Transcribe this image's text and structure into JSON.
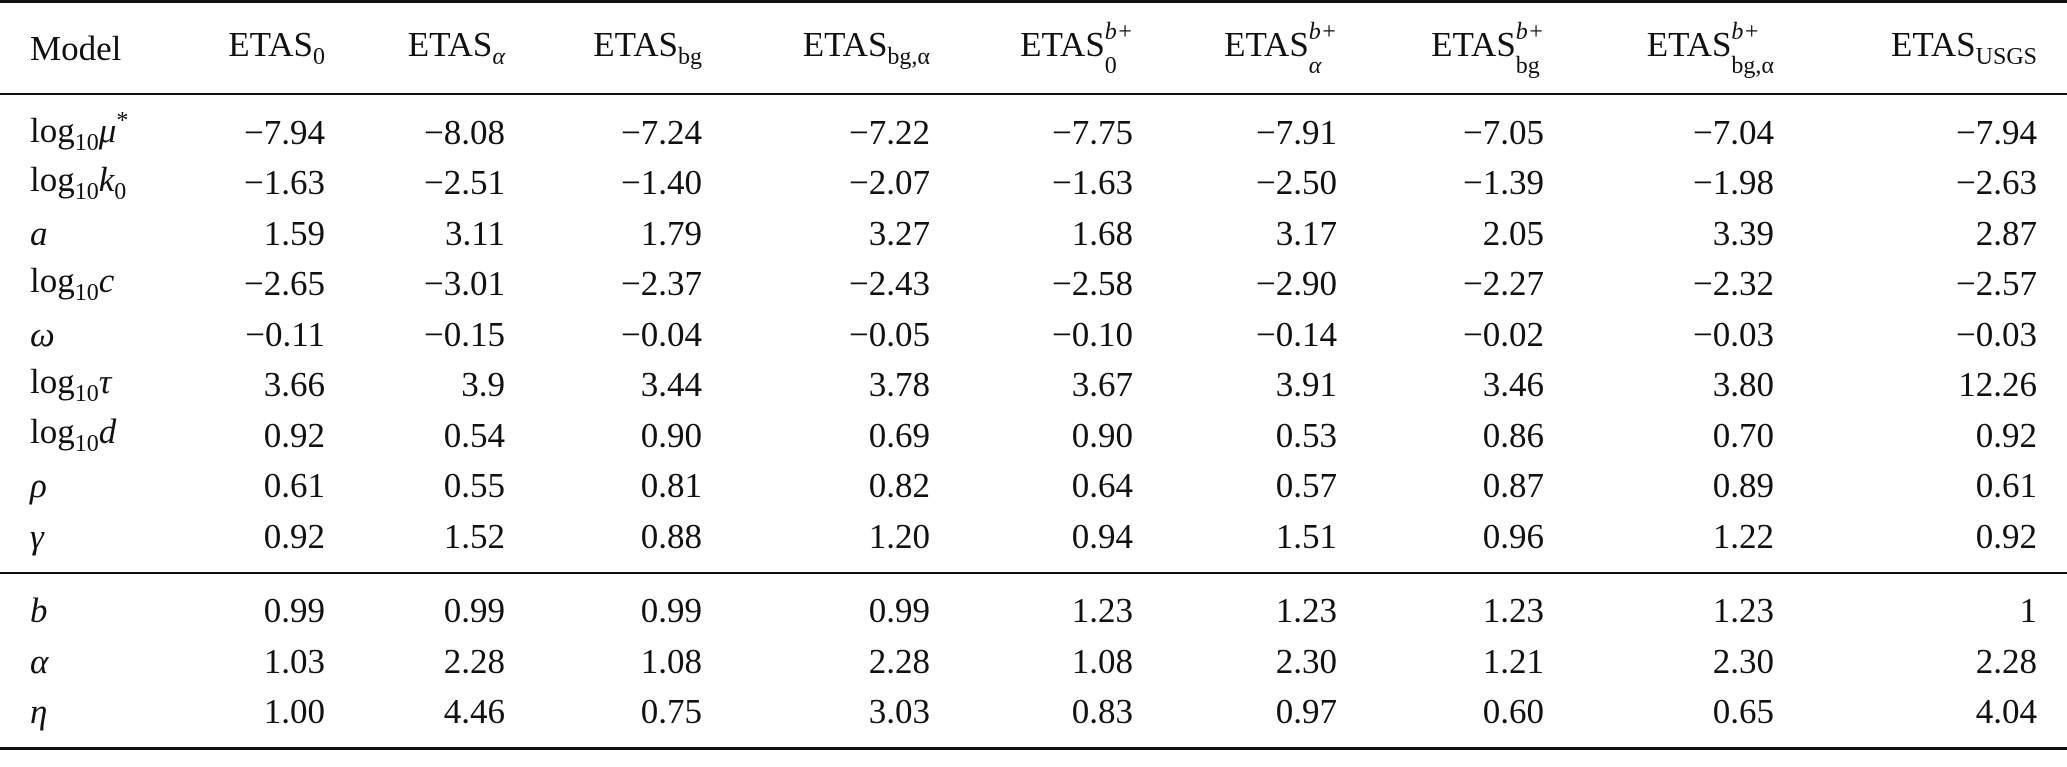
{
  "table": {
    "corner_label": "Model",
    "columns": [
      {
        "base": "ETAS",
        "sub": "0",
        "sup": ""
      },
      {
        "base": "ETAS",
        "sub": "α",
        "sup": ""
      },
      {
        "base": "ETAS",
        "sub": "bg",
        "sup": ""
      },
      {
        "base": "ETAS",
        "sub": "bg,α",
        "sup": ""
      },
      {
        "base": "ETAS",
        "sub": "0",
        "sup": "b+"
      },
      {
        "base": "ETAS",
        "sub": "α",
        "sup": "b+"
      },
      {
        "base": "ETAS",
        "sub": "bg",
        "sup": "b+"
      },
      {
        "base": "ETAS",
        "sub": "bg,α",
        "sup": "b+"
      },
      {
        "base": "ETAS",
        "sub": "USGS",
        "sup": ""
      }
    ],
    "rows": [
      {
        "label_pre": "log",
        "label_sub": "10",
        "label_var": "μ",
        "label_sup": "*",
        "values": [
          "−7.94",
          "−8.08",
          "−7.24",
          "−7.22",
          "−7.75",
          "−7.91",
          "−7.05",
          "−7.04",
          "−7.94"
        ]
      },
      {
        "label_pre": "log",
        "label_sub": "10",
        "label_var": "k",
        "label_var_sub": "0",
        "values": [
          "−1.63",
          "−2.51",
          "−1.40",
          "−2.07",
          "−1.63",
          "−2.50",
          "−1.39",
          "−1.98",
          "−2.63"
        ]
      },
      {
        "label_var": "a",
        "values": [
          "1.59",
          "3.11",
          "1.79",
          "3.27",
          "1.68",
          "3.17",
          "2.05",
          "3.39",
          "2.87"
        ]
      },
      {
        "label_pre": "log",
        "label_sub": "10",
        "label_var": "c",
        "values": [
          "−2.65",
          "−3.01",
          "−2.37",
          "−2.43",
          "−2.58",
          "−2.90",
          "−2.27",
          "−2.32",
          "−2.57"
        ]
      },
      {
        "label_var": "ω",
        "values": [
          "−0.11",
          "−0.15",
          "−0.04",
          "−0.05",
          "−0.10",
          "−0.14",
          "−0.02",
          "−0.03",
          "−0.03"
        ]
      },
      {
        "label_pre": "log",
        "label_sub": "10",
        "label_var": "τ",
        "values": [
          "3.66",
          "3.9",
          "3.44",
          "3.78",
          "3.67",
          "3.91",
          "3.46",
          "3.80",
          "12.26"
        ]
      },
      {
        "label_pre": "log",
        "label_sub": "10",
        "label_var": "d",
        "values": [
          "0.92",
          "0.54",
          "0.90",
          "0.69",
          "0.90",
          "0.53",
          "0.86",
          "0.70",
          "0.92"
        ]
      },
      {
        "label_var": "ρ",
        "values": [
          "0.61",
          "0.55",
          "0.81",
          "0.82",
          "0.64",
          "0.57",
          "0.87",
          "0.89",
          "0.61"
        ]
      },
      {
        "label_var": "γ",
        "values": [
          "0.92",
          "1.52",
          "0.88",
          "1.20",
          "0.94",
          "1.51",
          "0.96",
          "1.22",
          "0.92"
        ]
      }
    ],
    "rows_b": [
      {
        "label_var": "b",
        "values": [
          "0.99",
          "0.99",
          "0.99",
          "0.99",
          "1.23",
          "1.23",
          "1.23",
          "1.23",
          "1"
        ]
      },
      {
        "label_var": "α",
        "values": [
          "1.03",
          "2.28",
          "1.08",
          "2.28",
          "1.08",
          "2.30",
          "1.21",
          "2.30",
          "2.28"
        ]
      },
      {
        "label_var": "η",
        "values": [
          "1.00",
          "4.46",
          "0.75",
          "3.03",
          "0.83",
          "0.97",
          "0.60",
          "0.65",
          "4.04"
        ]
      }
    ]
  }
}
